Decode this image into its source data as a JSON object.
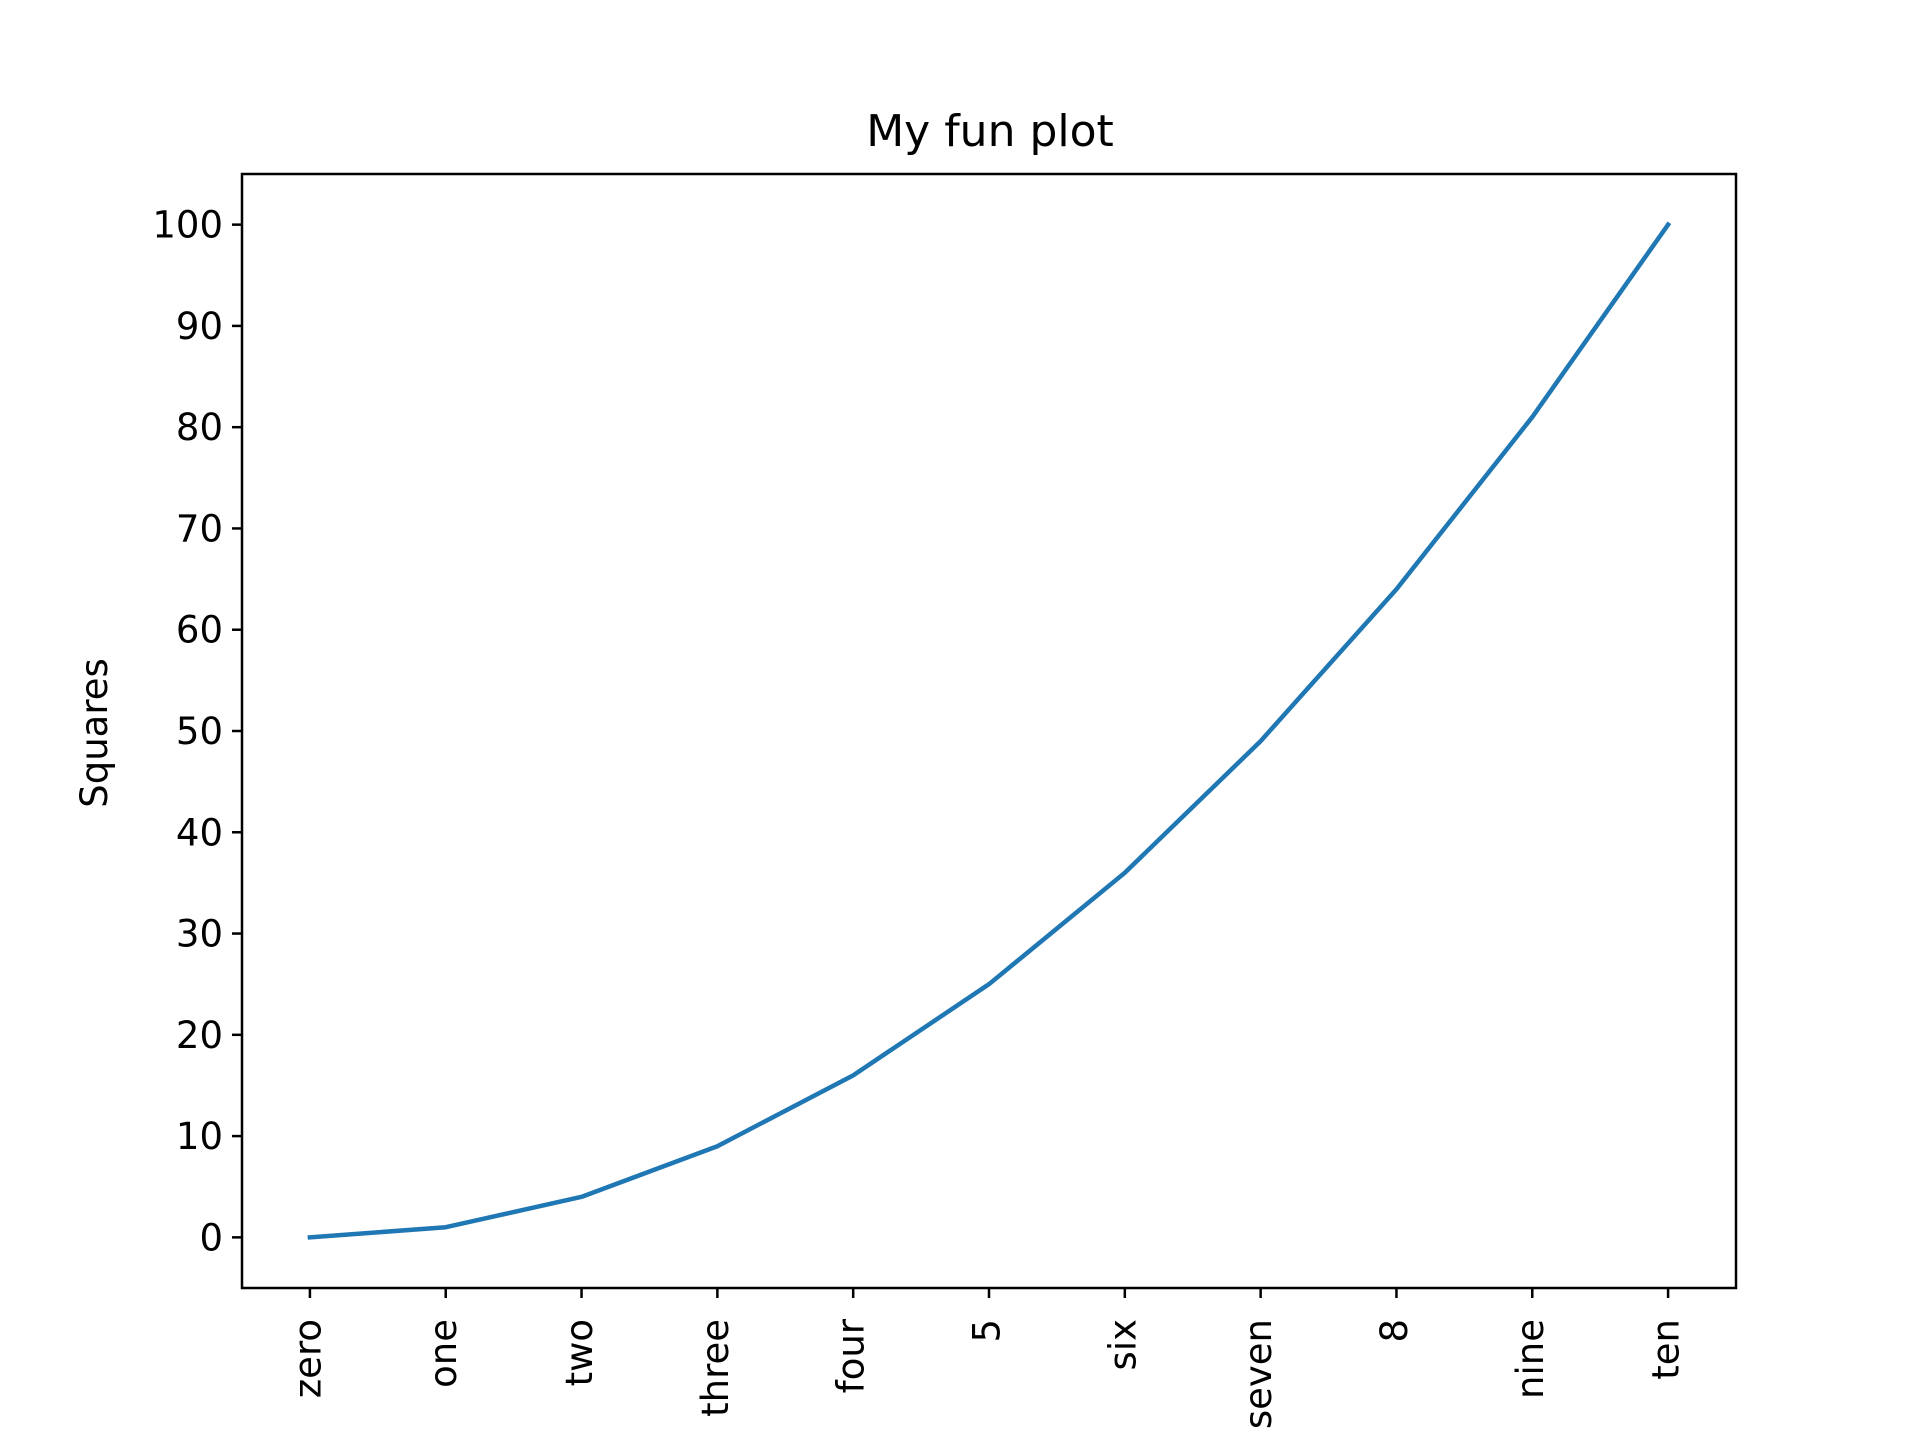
{
  "chart_data": {
    "type": "line",
    "title": "My fun plot",
    "xlabel": "",
    "ylabel": "Squares",
    "categories": [
      "zero",
      "one",
      "two",
      "three",
      "four",
      "5",
      "six",
      "seven",
      "8",
      "nine",
      "ten"
    ],
    "series": [
      {
        "values": [
          0,
          1,
          4,
          9,
          16,
          25,
          36,
          49,
          64,
          81,
          100
        ],
        "color": "#1f77b4"
      }
    ],
    "ylim": [
      -5,
      105
    ],
    "yticks": [
      0,
      10,
      20,
      30,
      40,
      50,
      60,
      70,
      80,
      90,
      100
    ],
    "ytick_labels": [
      "0",
      "10",
      "20",
      "30",
      "40",
      "50",
      "60",
      "70",
      "80",
      "90",
      "100"
    ],
    "grid": false,
    "legend": "none"
  }
}
